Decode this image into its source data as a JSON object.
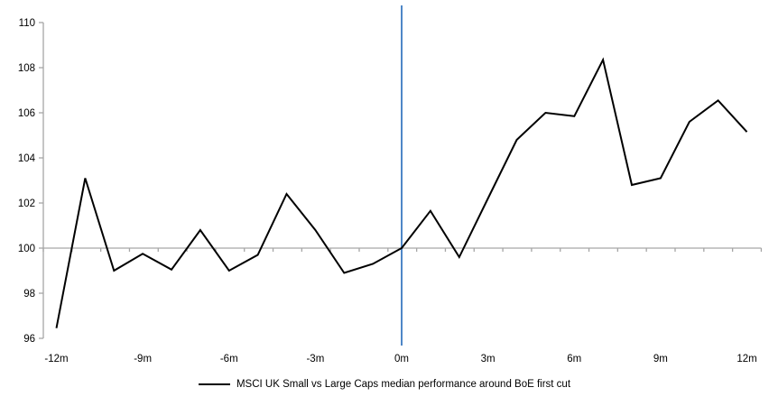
{
  "legend": {
    "label": "MSCI UK Small vs Large Caps median performance around BoE first cut"
  },
  "chart_data": {
    "type": "line",
    "x": [
      -12,
      -11,
      -10,
      -9,
      -8,
      -7,
      -6,
      -5,
      -4,
      -3,
      -2,
      -1,
      0,
      1,
      2,
      3,
      4,
      5,
      6,
      7,
      8,
      9,
      10,
      11,
      12
    ],
    "series": [
      {
        "name": "MSCI UK Small vs Large Caps median performance around BoE first cut",
        "values": [
          96.45,
          103.1,
          99.0,
          99.75,
          99.05,
          100.8,
          99.0,
          99.7,
          102.4,
          100.8,
          98.9,
          99.3,
          100.0,
          101.65,
          99.6,
          102.2,
          104.8,
          106.0,
          105.85,
          108.35,
          102.8,
          103.1,
          105.6,
          106.55,
          105.15
        ]
      }
    ],
    "title": "",
    "xlabel": "",
    "ylabel": "",
    "xlim": [
      -12.5,
      12.5
    ],
    "ylim": [
      96,
      110
    ],
    "y_ticks": [
      96,
      98,
      100,
      102,
      104,
      106,
      108,
      110
    ],
    "x_tick_values": [
      -12,
      -9,
      -6,
      -3,
      0,
      3,
      6,
      9,
      12
    ],
    "x_tick_labels": [
      "-12m",
      "-9m",
      "-6m",
      "-3m",
      "0m",
      "3m",
      "6m",
      "9m",
      "12m"
    ],
    "baseline_value": 100,
    "event_line_x": 0,
    "grid": "baseline-only",
    "legend_position": "bottom",
    "colors": {
      "series_line": "#000000",
      "event_line": "#4e87c7",
      "axis": "#a6a6a6",
      "tick": "#a6a6a6",
      "text": "#000000",
      "background": "#ffffff"
    }
  }
}
